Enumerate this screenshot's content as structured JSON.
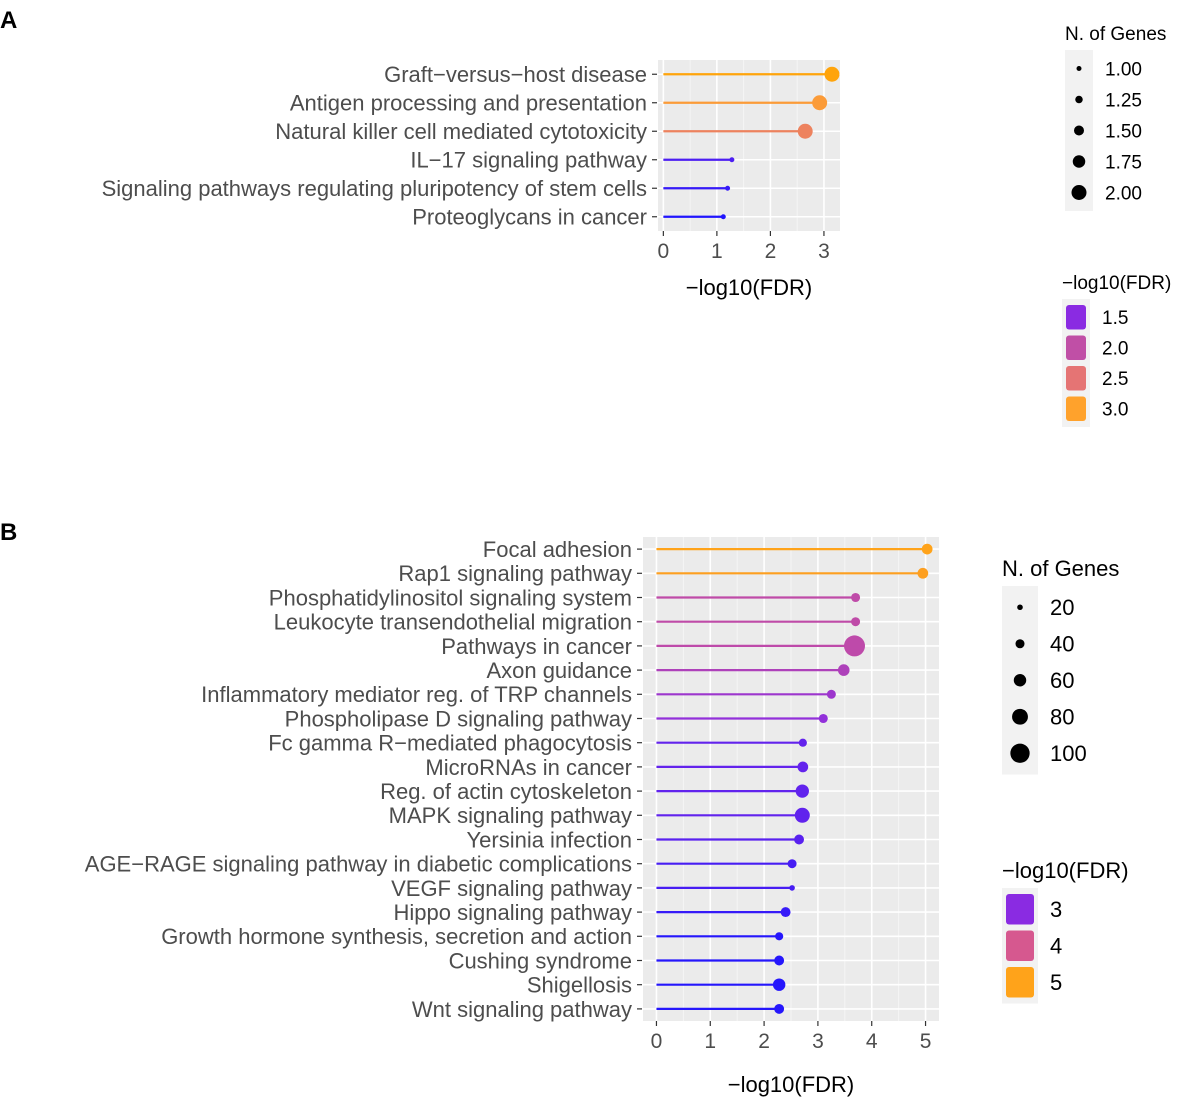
{
  "figure_labels": {
    "panel_a": "A",
    "panel_b": "B"
  },
  "chart_data": [
    {
      "panel": "A",
      "type": "lollipop",
      "title": "",
      "xlabel": "−log10(FDR)",
      "ylabel": "",
      "xlim": [
        -0.1,
        3.3
      ],
      "xticks": [
        0,
        1,
        2,
        3
      ],
      "grid": true,
      "categories": [
        "Graft−versus−host disease",
        "Antigen processing and presentation",
        "Natural killer cell mediated cytotoxicity",
        "IL−17 signaling pathway",
        "Signaling pathways regulating pluripotency of stem cells",
        "Proteoglycans in cancer"
      ],
      "values": [
        3.15,
        2.92,
        2.65,
        1.28,
        1.2,
        1.12
      ],
      "sizes": [
        2,
        2,
        2,
        1,
        1,
        1
      ],
      "legend_size": {
        "title": "N. of Genes",
        "values": [
          1.0,
          1.25,
          1.5,
          1.75,
          2.0
        ],
        "labels": [
          "1.00",
          "1.25",
          "1.50",
          "1.75",
          "2.00"
        ]
      },
      "legend_color": {
        "title": "−log10(FDR)",
        "values": [
          1.5,
          2.0,
          2.5,
          3.0
        ],
        "labels": [
          "1.5",
          "2.0",
          "2.5",
          "3.0"
        ],
        "colors": [
          "#8a2be2",
          "#c04fa6",
          "#e57474",
          "#ffa22c"
        ]
      },
      "color_scale": {
        "domain": [
          1.1,
          1.5,
          2.0,
          2.5,
          3.0,
          3.2
        ],
        "colors": [
          "#1a14ff",
          "#8a2be2",
          "#c04fa6",
          "#e57474",
          "#ffa22c",
          "#ffa500"
        ]
      },
      "size_scale": {
        "domain": [
          1,
          2
        ],
        "radius": [
          2.5,
          7.5
        ]
      }
    },
    {
      "panel": "B",
      "type": "lollipop",
      "title": "",
      "xlabel": "−log10(FDR)",
      "ylabel": "",
      "xlim": [
        -0.25,
        5.25
      ],
      "xticks": [
        0,
        1,
        2,
        3,
        4,
        5
      ],
      "grid": true,
      "categories": [
        "Focal adhesion",
        "Rap1 signaling pathway",
        "Phosphatidylinositol signaling system",
        "Leukocyte transendothelial migration",
        "Pathways in cancer",
        "Axon guidance",
        "Inflammatory mediator reg. of TRP channels",
        "Phospholipase D signaling pathway",
        "Fc gamma R−mediated phagocytosis",
        "MicroRNAs in cancer",
        "Reg. of actin cytoskeleton",
        "MAPK signaling pathway",
        "Yersinia infection",
        "AGE−RAGE signaling pathway in diabetic complications",
        "VEGF signaling pathway",
        "Hippo signaling pathway",
        "Growth hormone synthesis, secretion and action",
        "Cushing syndrome",
        "Shigellosis",
        "Wnt signaling pathway"
      ],
      "values": [
        5.03,
        4.95,
        3.7,
        3.7,
        3.68,
        3.48,
        3.25,
        3.1,
        2.72,
        2.72,
        2.71,
        2.71,
        2.65,
        2.52,
        2.52,
        2.4,
        2.28,
        2.28,
        2.28,
        2.28
      ],
      "sizes": [
        50,
        50,
        40,
        40,
        110,
        55,
        40,
        40,
        35,
        50,
        65,
        75,
        45,
        40,
        20,
        45,
        35,
        45,
        60,
        45
      ],
      "legend_size": {
        "title": "N. of Genes",
        "values": [
          20,
          40,
          60,
          80,
          100
        ],
        "labels": [
          "20",
          "40",
          "60",
          "80",
          "100"
        ]
      },
      "legend_color": {
        "title": "−log10(FDR)",
        "values": [
          3,
          4,
          5
        ],
        "labels": [
          "3",
          "4",
          "5"
        ],
        "colors": [
          "#8a2be2",
          "#d6588f",
          "#ffa31a"
        ]
      },
      "color_scale": {
        "domain": [
          2.2,
          3.0,
          4.0,
          5.0
        ],
        "colors": [
          "#1a14ff",
          "#8a2be2",
          "#d6588f",
          "#ffa31a"
        ]
      },
      "size_scale": {
        "domain": [
          20,
          110
        ],
        "radius": [
          2.8,
          10.5
        ]
      }
    }
  ]
}
